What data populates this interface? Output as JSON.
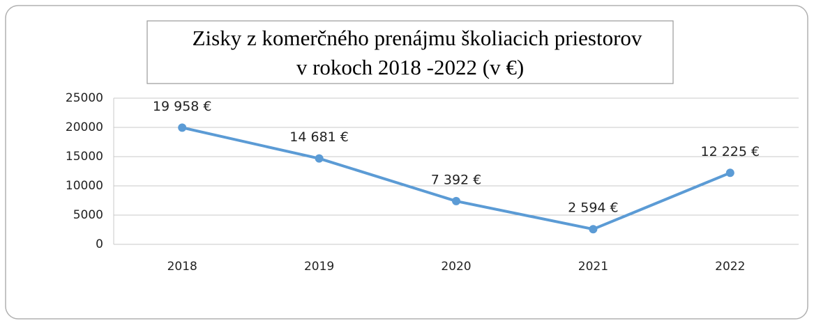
{
  "chart_data": {
    "type": "line",
    "title": [
      "Zisky z komerčného prenájmu školiacich priestorov",
      "v rokoch 2018 -2022 (v €)"
    ],
    "categories": [
      "2018",
      "2019",
      "2020",
      "2021",
      "2022"
    ],
    "values": [
      19958,
      14681,
      7392,
      2594,
      12225
    ],
    "value_labels": [
      "19 958 €",
      "14 681 €",
      "7 392 €",
      "2 594 €",
      "12 225 €"
    ],
    "color": "#5b9bd5",
    "ylim": [
      0,
      25000
    ],
    "yticks": [
      0,
      5000,
      10000,
      15000,
      20000,
      25000
    ],
    "grid": true
  }
}
